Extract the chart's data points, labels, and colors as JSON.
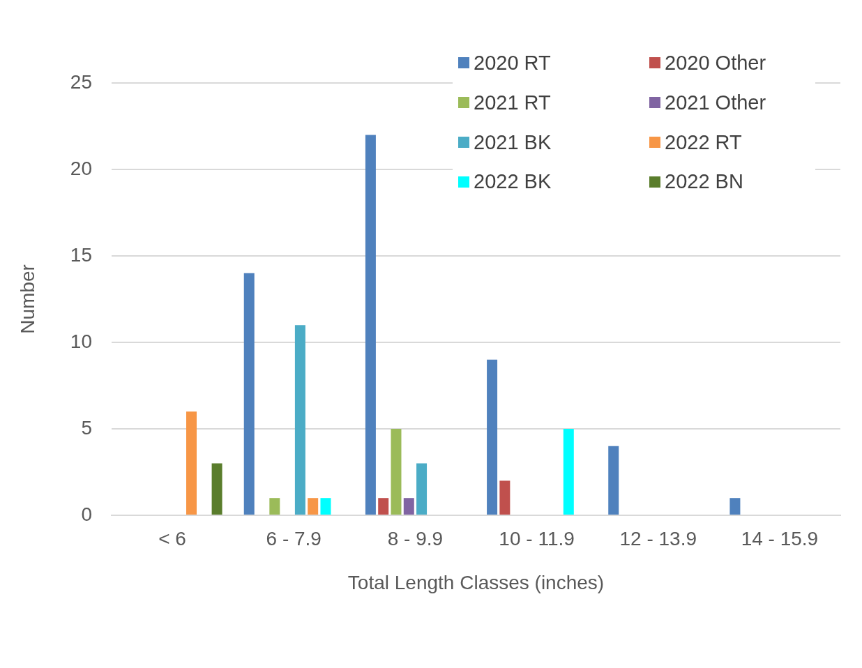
{
  "chart_data": {
    "type": "bar",
    "xlabel": "Total Length Classes (inches)",
    "ylabel": "Number",
    "categories": [
      "< 6",
      "6 - 7.9",
      "8 - 9.9",
      "10 - 11.9",
      "12 - 13.9",
      "14 - 15.9"
    ],
    "series": [
      {
        "name": "2020 RT",
        "color": "#4f81bd",
        "values": [
          null,
          14,
          22,
          9,
          4,
          1
        ]
      },
      {
        "name": "2020 Other",
        "color": "#c0504d",
        "values": [
          null,
          null,
          1,
          2,
          null,
          null
        ]
      },
      {
        "name": "2021 RT",
        "color": "#9bbb59",
        "values": [
          null,
          1,
          5,
          null,
          null,
          null
        ]
      },
      {
        "name": "2021 Other",
        "color": "#8064a2",
        "values": [
          null,
          null,
          1,
          null,
          null,
          null
        ]
      },
      {
        "name": "2021 BK",
        "color": "#4bacc6",
        "values": [
          null,
          11,
          3,
          null,
          null,
          null
        ]
      },
      {
        "name": "2022 RT",
        "color": "#f79646",
        "values": [
          6,
          1,
          null,
          null,
          null,
          null
        ]
      },
      {
        "name": "2022 BK",
        "color": "#00ffff",
        "values": [
          null,
          1,
          null,
          5,
          null,
          null
        ]
      },
      {
        "name": "2022 BN",
        "color": "#5a7d2c",
        "values": [
          3,
          null,
          null,
          null,
          null,
          null
        ]
      }
    ],
    "ylim": [
      0,
      25
    ],
    "yticks": [
      0,
      5,
      10,
      15,
      20,
      25
    ],
    "grid": "y",
    "legend": "top right"
  }
}
